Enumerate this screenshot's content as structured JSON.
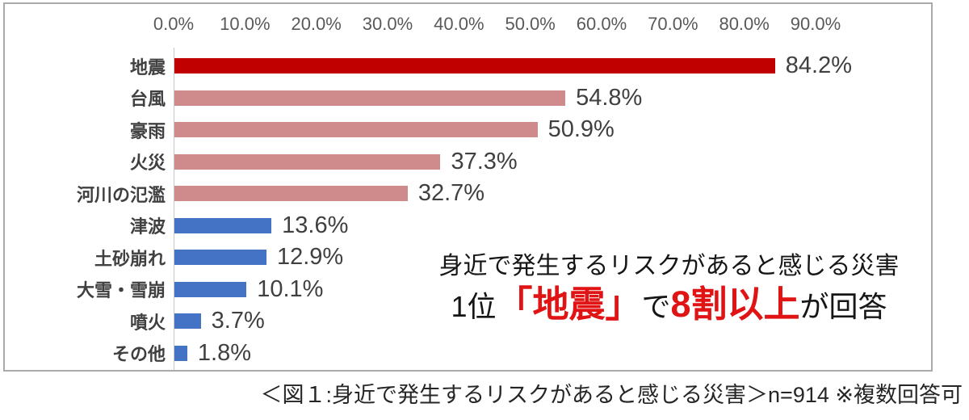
{
  "chart_data": {
    "type": "bar",
    "orientation": "horizontal",
    "title": "",
    "xlabel": "",
    "ylabel": "",
    "xlim": [
      0,
      90
    ],
    "grid": false,
    "legend": "none",
    "x_ticks": [
      "0.0%",
      "10.0%",
      "20.0%",
      "30.0%",
      "40.0%",
      "50.0%",
      "60.0%",
      "70.0%",
      "80.0%",
      "90.0%"
    ],
    "categories": [
      "地震",
      "台風",
      "豪雨",
      "火災",
      "河川の氾濫",
      "津波",
      "土砂崩れ",
      "大雪・雪崩",
      "噴火",
      "その他"
    ],
    "values": [
      84.2,
      54.8,
      50.9,
      37.3,
      32.7,
      13.6,
      12.9,
      10.1,
      3.7,
      1.8
    ],
    "value_labels": [
      "84.2%",
      "54.8%",
      "50.9%",
      "37.3%",
      "32.7%",
      "13.6%",
      "12.9%",
      "10.1%",
      "3.7%",
      "1.8%"
    ],
    "bar_colors": [
      "#c00000",
      "#cf8b8b",
      "#cf8b8b",
      "#cf8b8b",
      "#cf8b8b",
      "#4472c4",
      "#4472c4",
      "#4472c4",
      "#4472c4",
      "#4472c4"
    ]
  },
  "colors": {
    "dark_red_bar": "#c00000",
    "pink_bar": "#cf8b8b",
    "blue_bar": "#4472c4",
    "annotation_red": "#e01414",
    "tick_gray": "#595959",
    "label_gray": "#404040"
  },
  "annotation": {
    "line1": "身近で発生するリスクがあると感じる災害",
    "line2_parts": [
      {
        "text": "1位",
        "style": "plain"
      },
      {
        "text": "「地震」",
        "style": "em"
      },
      {
        "text": "で",
        "style": "plain"
      },
      {
        "text": "8割以上",
        "style": "em"
      },
      {
        "text": "が回答",
        "style": "plain"
      }
    ]
  },
  "caption": {
    "text": "＜図１:身近で発生するリスクがあると感じる災害＞n=914 ※複数回答可"
  }
}
